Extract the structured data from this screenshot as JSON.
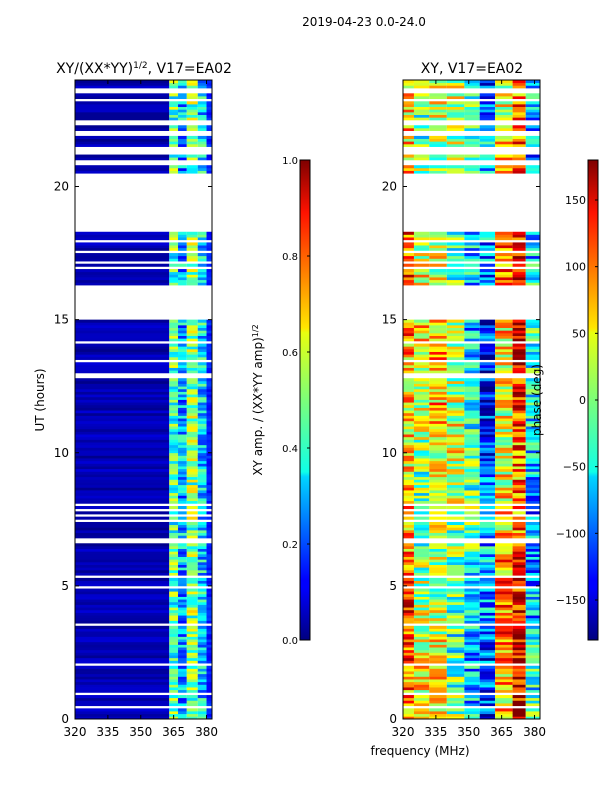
{
  "figure": {
    "suptitle": "2019-04-23 0.0-24.0",
    "shared_xlabel": "frequency (MHz)"
  },
  "chart_data": [
    {
      "type": "heatmap",
      "id": "amp",
      "title_main": "XY/(XX*YY)",
      "title_sup": "1/2",
      "title_tail": ", V17=EA02",
      "ylabel": "UT (hours)",
      "xlim": [
        320,
        382.5
      ],
      "ylim": [
        0,
        24
      ],
      "xticks": [
        320,
        335,
        350,
        365,
        380
      ],
      "yticks": [
        0,
        5,
        10,
        15,
        20
      ],
      "colorbar": {
        "label_main": "XY amp. / (XX*YY amp)",
        "label_sup": "1/2",
        "range": [
          0.0,
          1.0
        ],
        "ticks": [
          "0.0",
          "0.2",
          "0.4",
          "0.6",
          "0.8",
          "1.0"
        ],
        "tick_values": [
          0.0,
          0.2,
          0.4,
          0.6,
          0.8,
          1.0
        ]
      },
      "pattern": "mostly low amplitude (~0.05) below 363 MHz; elevated amplitude (0.3-0.6) in columns near 363-380 MHz",
      "bands": [
        {
          "label": "below 363 MHz",
          "x": [
            320,
            363
          ],
          "value": 0.05
        },
        {
          "label": "363-367 MHz",
          "x": [
            363,
            367
          ],
          "value": 0.45
        },
        {
          "label": "367-371 MHz",
          "x": [
            367,
            371
          ],
          "value": 0.3
        },
        {
          "label": "371-376 MHz",
          "x": [
            371,
            376
          ],
          "value": 0.5
        },
        {
          "label": "376-380 MHz",
          "x": [
            376,
            380
          ],
          "value": 0.35
        },
        {
          "label": "above 380 MHz",
          "x": [
            380,
            382.5
          ],
          "value": 0.15
        }
      ]
    },
    {
      "type": "heatmap",
      "id": "phase",
      "title": "XY, V17=EA02",
      "ylabel": "",
      "xlim": [
        320,
        382.5
      ],
      "ylim": [
        0,
        24
      ],
      "xticks": [
        320,
        335,
        350,
        365,
        380
      ],
      "yticks": [
        0,
        5,
        10,
        15,
        20
      ],
      "colorbar": {
        "label": "phase (deg)",
        "range": [
          -180,
          180
        ],
        "ticks": [
          "150",
          "100",
          "50",
          "0",
          "−50",
          "−100",
          "−150"
        ],
        "tick_values": [
          150,
          100,
          50,
          0,
          -50,
          -100,
          -150
        ]
      },
      "pattern": "phase varies across frequency; mostly 0-50 deg with red/orange (~120 deg) near 355-375 MHz and blue (~-120 deg) patches",
      "bands": [
        {
          "label": "320-325 MHz",
          "x": [
            320,
            325
          ],
          "value": 80
        },
        {
          "label": "325-332 MHz",
          "x": [
            325,
            332
          ],
          "value": 20
        },
        {
          "label": "332-340 MHz",
          "x": [
            332,
            340
          ],
          "value": 40
        },
        {
          "label": "340-348 MHz",
          "x": [
            340,
            348
          ],
          "value": 5
        },
        {
          "label": "348-355 MHz",
          "x": [
            348,
            355
          ],
          "value": -40
        },
        {
          "label": "355-362 MHz",
          "x": [
            355,
            362
          ],
          "value": -100
        },
        {
          "label": "362-370 MHz",
          "x": [
            362,
            370
          ],
          "value": 60
        },
        {
          "label": "370-376 MHz",
          "x": [
            370,
            376
          ],
          "value": 120
        },
        {
          "label": "376-382.5 MHz",
          "x": [
            376,
            382.5
          ],
          "value": -60
        }
      ]
    }
  ],
  "flagged_ut_ranges": [
    [
      23.55,
      23.75
    ],
    [
      23.2,
      23.35
    ],
    [
      22.3,
      22.5
    ],
    [
      21.9,
      22.15
    ],
    [
      21.2,
      21.5
    ],
    [
      20.85,
      21.0
    ],
    [
      18.3,
      20.5
    ],
    [
      17.85,
      17.95
    ],
    [
      17.5,
      17.6
    ],
    [
      17.1,
      17.2
    ],
    [
      16.85,
      16.95
    ],
    [
      16.55,
      16.6
    ],
    [
      16.0,
      16.3
    ],
    [
      14.95,
      15.95
    ],
    [
      14.1,
      14.2
    ],
    [
      13.4,
      13.45
    ],
    [
      12.8,
      13.0
    ],
    [
      8.0,
      8.05
    ],
    [
      7.8,
      7.85
    ],
    [
      7.6,
      7.7
    ],
    [
      7.35,
      7.5
    ],
    [
      6.6,
      6.8
    ],
    [
      5.85,
      5.9
    ],
    [
      5.3,
      5.35
    ],
    [
      4.9,
      4.95
    ],
    [
      4.3,
      4.35
    ],
    [
      3.5,
      3.6
    ],
    [
      3.2,
      3.25
    ],
    [
      2.7,
      2.75
    ],
    [
      2.05,
      2.15
    ],
    [
      1.5,
      1.55
    ],
    [
      0.9,
      0.95
    ],
    [
      0.4,
      0.45
    ]
  ]
}
